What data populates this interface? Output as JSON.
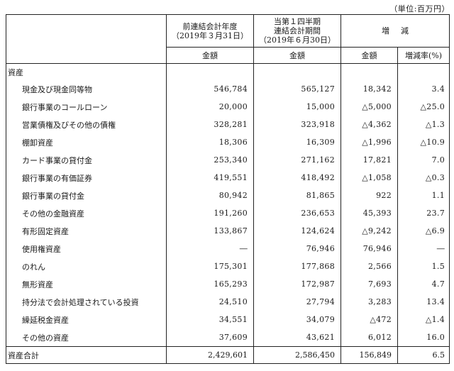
{
  "unit_note": "（単位:百万円）",
  "header": {
    "prev_period": {
      "line1": "前連結会計年度",
      "line2": "（2019年３月31日）"
    },
    "curr_period": {
      "line1": "当第１四半期",
      "line2": "連結会計期間",
      "line3": "（2019年６月30日）"
    },
    "change": "増減",
    "sub_amount": "金額",
    "sub_rate": "増減率(%)"
  },
  "section_title": "資産",
  "rows": [
    {
      "label": "現金及び現金同等物",
      "prev": "546,784",
      "curr": "565,127",
      "change": "18,342",
      "rate": "3.4"
    },
    {
      "label": "銀行事業のコールローン",
      "prev": "20,000",
      "curr": "15,000",
      "change": "△5,000",
      "rate": "△25.0"
    },
    {
      "label": "営業債権及びその他の債権",
      "prev": "328,281",
      "curr": "323,918",
      "change": "△4,362",
      "rate": "△1.3"
    },
    {
      "label": "棚卸資産",
      "prev": "18,306",
      "curr": "16,309",
      "change": "△1,996",
      "rate": "△10.9"
    },
    {
      "label": "カード事業の貸付金",
      "prev": "253,340",
      "curr": "271,162",
      "change": "17,821",
      "rate": "7.0"
    },
    {
      "label": "銀行事業の有価証券",
      "prev": "419,551",
      "curr": "418,492",
      "change": "△1,058",
      "rate": "△0.3"
    },
    {
      "label": "銀行事業の貸付金",
      "prev": "80,942",
      "curr": "81,865",
      "change": "922",
      "rate": "1.1"
    },
    {
      "label": "その他の金融資産",
      "prev": "191,260",
      "curr": "236,653",
      "change": "45,393",
      "rate": "23.7"
    },
    {
      "label": "有形固定資産",
      "prev": "133,867",
      "curr": "124,624",
      "change": "△9,242",
      "rate": "△6.9"
    },
    {
      "label": "使用権資産",
      "prev": "―",
      "curr": "76,946",
      "change": "76,946",
      "rate": "―"
    },
    {
      "label": "のれん",
      "prev": "175,301",
      "curr": "177,868",
      "change": "2,566",
      "rate": "1.5"
    },
    {
      "label": "無形資産",
      "prev": "165,293",
      "curr": "172,987",
      "change": "7,693",
      "rate": "4.7"
    },
    {
      "label": "持分法で会計処理されている投資",
      "prev": "24,510",
      "curr": "27,794",
      "change": "3,283",
      "rate": "13.4"
    },
    {
      "label": "繰延税金資産",
      "prev": "34,551",
      "curr": "34,079",
      "change": "△472",
      "rate": "△1.4"
    },
    {
      "label": "その他の資産",
      "prev": "37,609",
      "curr": "43,621",
      "change": "6,012",
      "rate": "16.0"
    }
  ],
  "total": {
    "label": "資産合計",
    "prev": "2,429,601",
    "curr": "2,586,450",
    "change": "156,849",
    "rate": "6.5"
  }
}
